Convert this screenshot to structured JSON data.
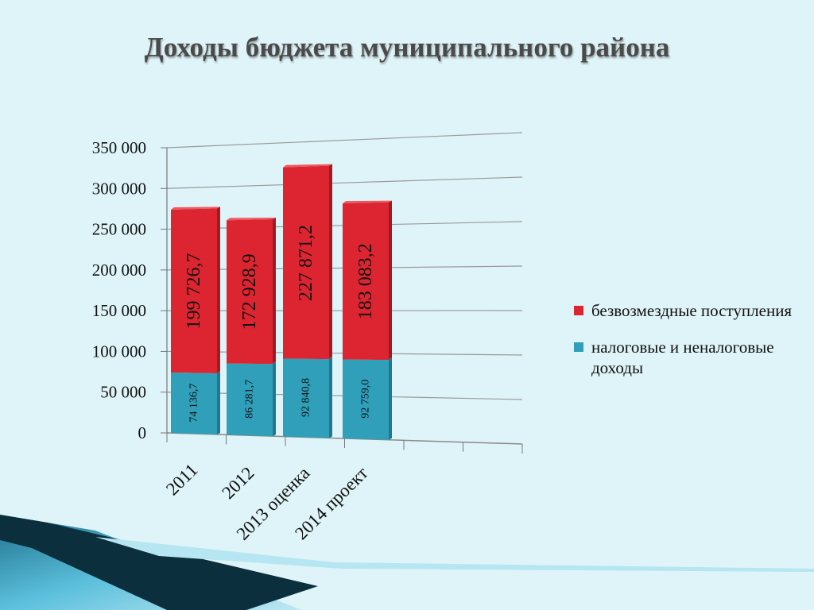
{
  "title": "Доходы бюджета муниципального района",
  "colors": {
    "background": "#dff4f8",
    "red_series": "#dc2530",
    "blue_series": "#2f9fba",
    "decor_dark": "#0b2f3d",
    "decor_teal": "#2a8fb0"
  },
  "chart_data": {
    "type": "bar",
    "stacked": true,
    "categories": [
      "2011",
      "2012",
      "2013 оценка",
      "2014 проект"
    ],
    "series": [
      {
        "name": "налоговые и неналоговые доходы",
        "values": [
          74136.7,
          86281.7,
          92840.8,
          92759.0
        ],
        "labels": [
          "74 136,7",
          "86 281,7",
          "92 840,8",
          "92 759,0"
        ]
      },
      {
        "name": "безвозмездные поступления",
        "values": [
          199726.7,
          172928.9,
          227871.2,
          183083.2
        ],
        "labels": [
          "199 726,7",
          "172 928,9",
          "227 871,2",
          "183 083,2"
        ]
      }
    ],
    "ylim": [
      0,
      350000
    ],
    "yticks": [
      "0",
      "50 000",
      "100 000",
      "150 000",
      "200 000",
      "250 000",
      "300 000",
      "350 000"
    ],
    "grid": true,
    "legend_position": "right"
  }
}
